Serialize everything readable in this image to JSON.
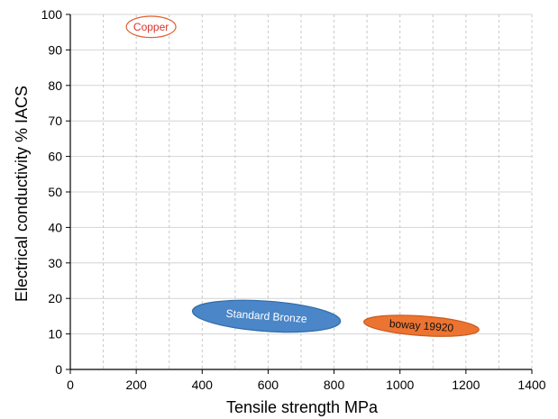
{
  "chart_data": {
    "type": "scatter",
    "xlabel": "Tensile strength MPa",
    "ylabel": "Electrical conductivity % IACS",
    "xlim": [
      0,
      1400
    ],
    "ylim": [
      0,
      100
    ],
    "x_ticks": [
      0,
      200,
      400,
      600,
      800,
      1000,
      1200,
      1400
    ],
    "y_ticks": [
      0,
      10,
      20,
      30,
      40,
      50,
      60,
      70,
      80,
      90,
      100
    ],
    "x_gridlines": [
      100,
      200,
      300,
      400,
      500,
      600,
      700,
      800,
      900,
      1000,
      1100,
      1200,
      1300,
      1400
    ],
    "y_gridlines": [
      10,
      20,
      30,
      40,
      50,
      60,
      70,
      80,
      90,
      100
    ],
    "grid": true,
    "vertical_grid_style": "dashed",
    "horizontal_grid_style": "solid",
    "regions": [
      {
        "label": "Copper",
        "tensile_strength_range": [
          170,
          320
        ],
        "conductivity_range": [
          93,
          99
        ],
        "center": [
          245,
          96.5
        ],
        "rotation_deg": 0,
        "fill": "#ffffff",
        "stroke": "#e06030",
        "text_color": "#d8342c"
      },
      {
        "label": "Standard Bronze",
        "tensile_strength_range": [
          370,
          820
        ],
        "conductivity_range": [
          10.5,
          19
        ],
        "center": [
          595,
          15
        ],
        "rotation_deg": 4,
        "fill": "#4a86c8",
        "stroke": "#2f6ca8",
        "text_color": "#ffffff"
      },
      {
        "label": "boway 19920",
        "tensile_strength_range": [
          890,
          1240
        ],
        "conductivity_range": [
          9.5,
          15
        ],
        "center": [
          1065,
          12.3
        ],
        "rotation_deg": 4,
        "fill": "#ec7431",
        "stroke": "#c95a1d",
        "text_color": "#111111"
      }
    ]
  }
}
